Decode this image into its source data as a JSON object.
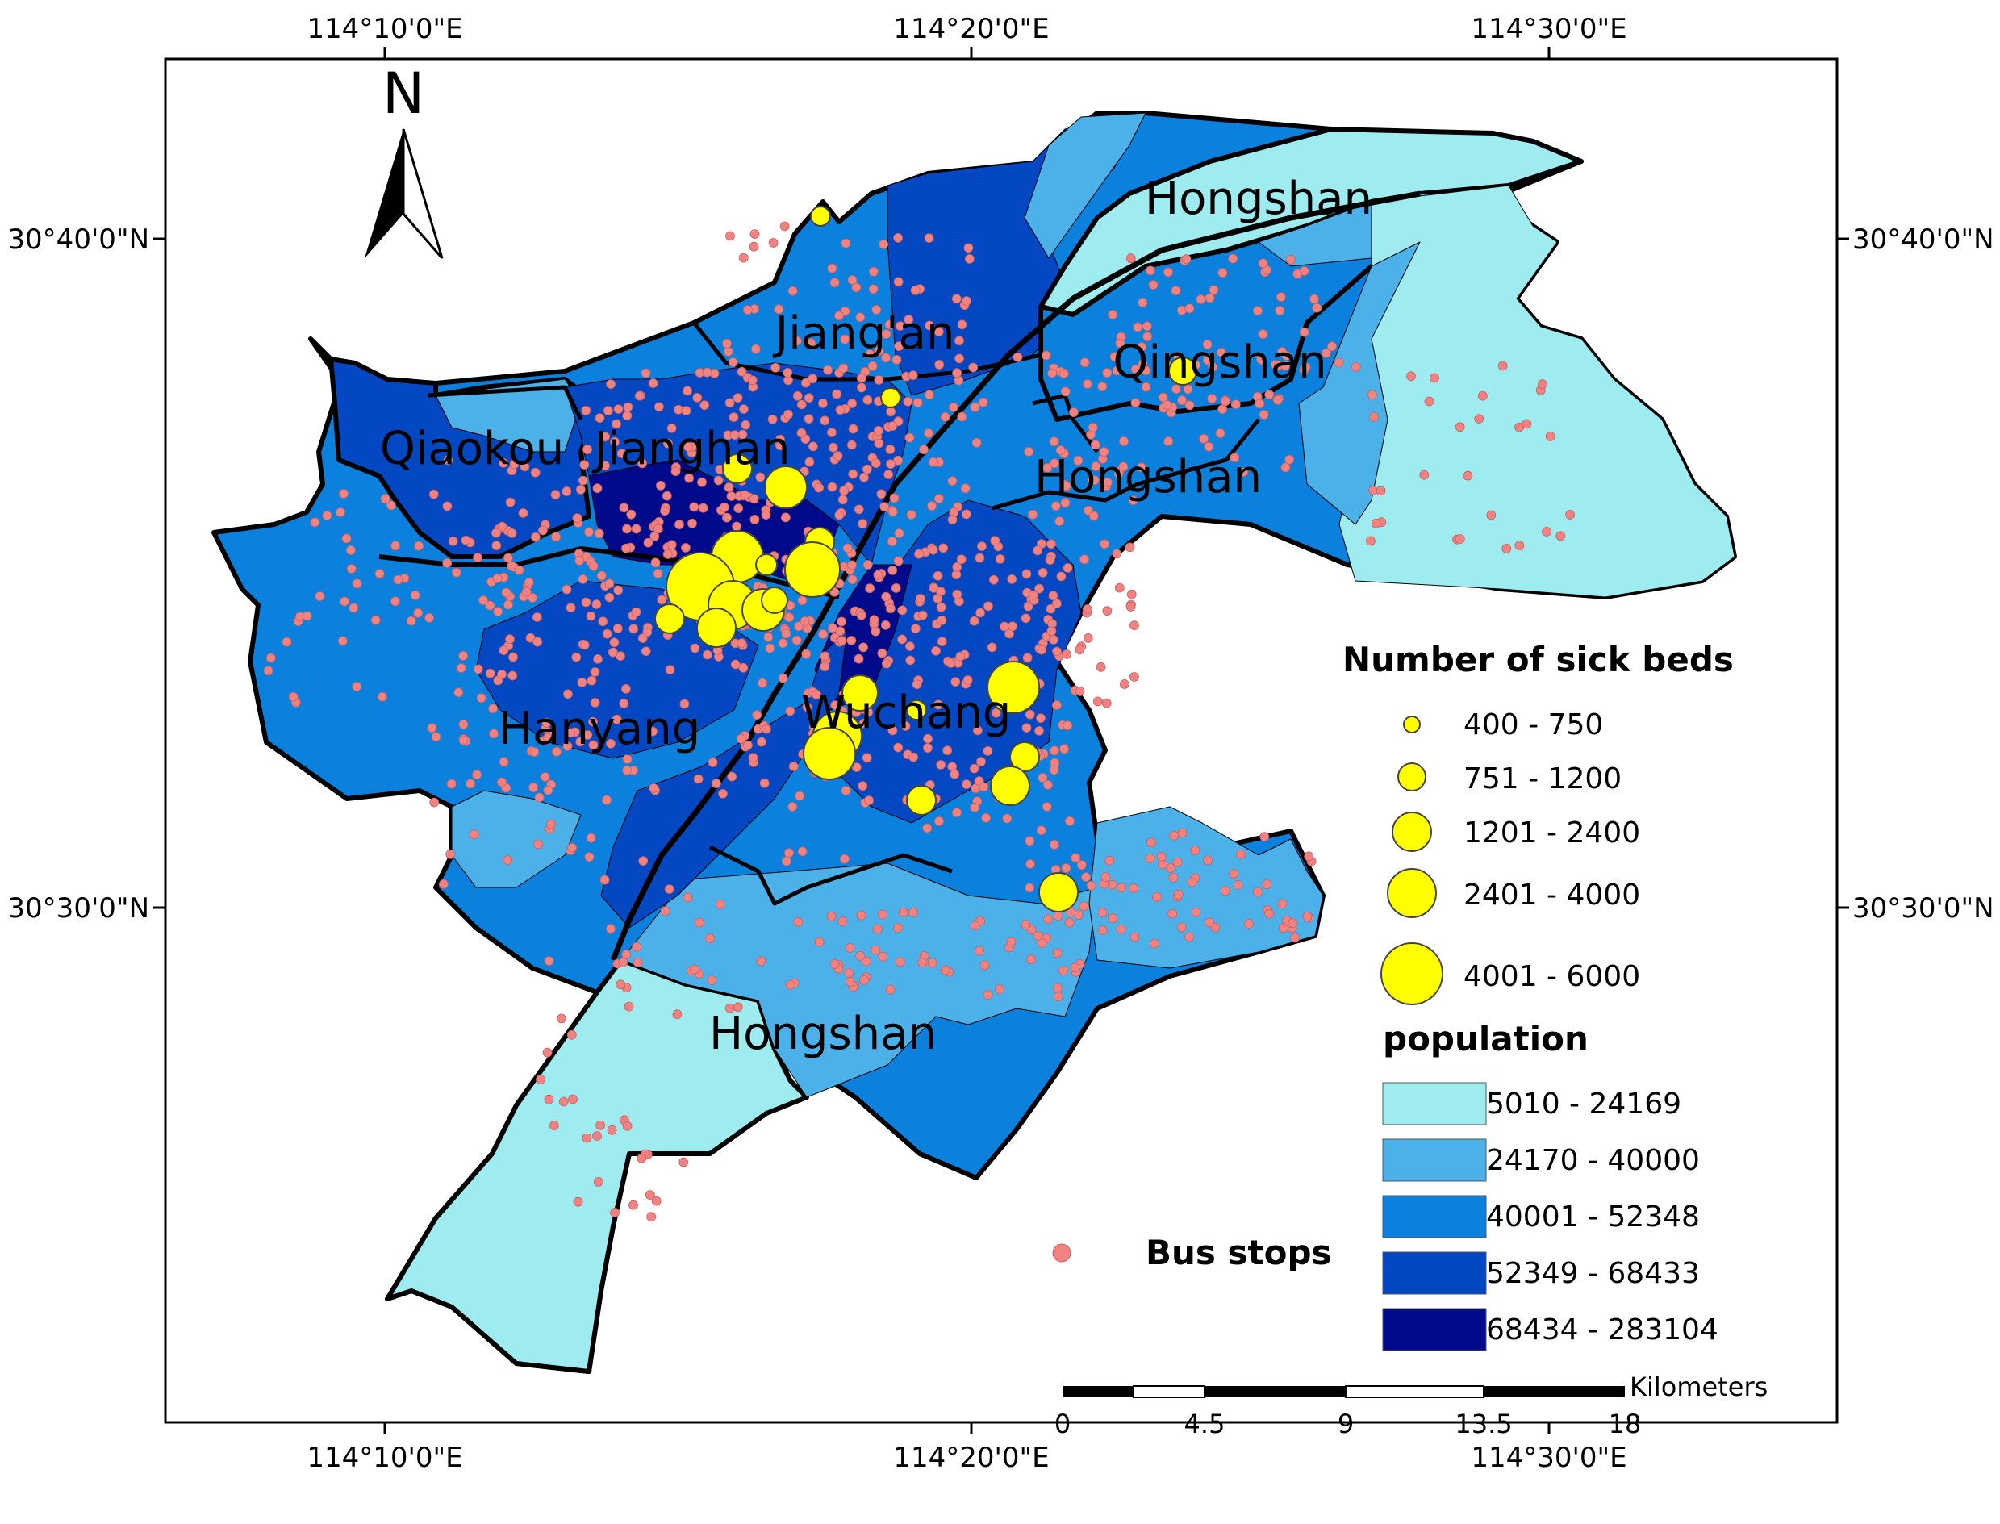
{
  "graticule": {
    "top": [
      "114°10'0\"E",
      "114°20'0\"E",
      "114°30'0\"E"
    ],
    "bottom": [
      "114°10'0\"E",
      "114°20'0\"E",
      "114°30'0\"E"
    ],
    "left": [
      "30°40'0\"N",
      "30°30'0\"N"
    ],
    "right": [
      "30°40'0\"N",
      "30°30'0\"N"
    ]
  },
  "north_arrow": {
    "label": "N"
  },
  "districts": [
    {
      "id": "hongshan-ne",
      "label": "Hongshan"
    },
    {
      "id": "jiangan",
      "label": "Jiang'an"
    },
    {
      "id": "qingshan",
      "label": "Qingshan"
    },
    {
      "id": "qiaokou",
      "label": "Qiaokou"
    },
    {
      "id": "jianghan",
      "label": "Jianghan"
    },
    {
      "id": "hongshan-mid",
      "label": "Hongshan"
    },
    {
      "id": "hanyang",
      "label": "Hanyang"
    },
    {
      "id": "wuchang",
      "label": "Wuchang"
    },
    {
      "id": "hongshan-south",
      "label": "Hongshan"
    }
  ],
  "legend": {
    "beds": {
      "title": "Number of sick beds",
      "color": "#ffff00",
      "classes": [
        {
          "label": "400 - 750"
        },
        {
          "label": "751 - 1200"
        },
        {
          "label": "1201 - 2400"
        },
        {
          "label": "2401 - 4000"
        },
        {
          "label": "4001 - 6000"
        }
      ]
    },
    "population": {
      "title": "population",
      "classes": [
        {
          "label": "5010 - 24169",
          "color": "#9eecf0"
        },
        {
          "label": "24170 - 40000",
          "color": "#4cb1e8"
        },
        {
          "label": "40001 - 52348",
          "color": "#0b80dc"
        },
        {
          "label": "52349 - 68433",
          "color": "#0447c2"
        },
        {
          "label": "68434 - 283104",
          "color": "#020a8c"
        }
      ]
    },
    "bus_stops": {
      "label": "Bus stops",
      "color": "#f08282"
    }
  },
  "scale_bar": {
    "unit": "Kilometers",
    "ticks": [
      "0",
      "4.5",
      "9",
      "13.5",
      "18"
    ]
  }
}
